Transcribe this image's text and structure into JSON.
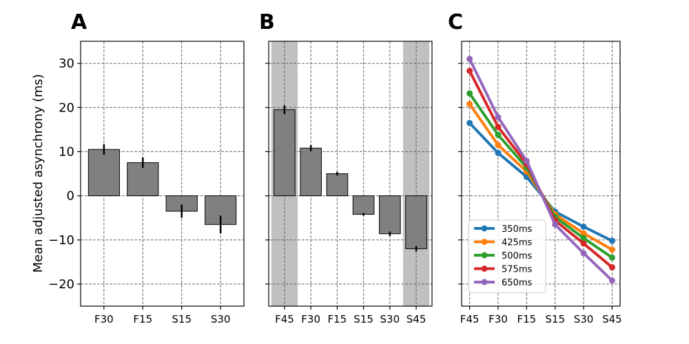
{
  "chart_data": [
    {
      "panel": "A",
      "type": "bar",
      "categories": [
        "F30",
        "F15",
        "S15",
        "S30"
      ],
      "values": [
        10.5,
        7.5,
        -3.5,
        -6.5
      ],
      "errors": [
        1.2,
        1.2,
        1.5,
        2.0
      ],
      "ylabel": "Mean adjusted asynchrony (ms)",
      "ylim": [
        -25,
        35
      ],
      "yticks": [
        -20,
        -10,
        0,
        10,
        20,
        30
      ],
      "grid": true,
      "bar_color": "#808080"
    },
    {
      "panel": "B",
      "type": "bar",
      "categories": [
        "F45",
        "F30",
        "F15",
        "S15",
        "S30",
        "S45"
      ],
      "values": [
        19.5,
        10.8,
        5.0,
        -4.2,
        -8.6,
        -12.0
      ],
      "errors": [
        1.0,
        0.7,
        0.4,
        0.3,
        0.5,
        0.6
      ],
      "shaded_categories": [
        "F45",
        "S45"
      ],
      "ylim": [
        -25,
        35
      ],
      "grid": true,
      "bar_color": "#808080",
      "shade_color": "#c0c0c0"
    },
    {
      "panel": "C",
      "type": "line",
      "categories": [
        "F45",
        "F30",
        "F15",
        "S15",
        "S30",
        "S45"
      ],
      "ylim": [
        -25,
        35
      ],
      "grid": true,
      "legend_position": "bottom-left",
      "series": [
        {
          "name": "350ms",
          "color": "#1f77b4",
          "values": [
            16.5,
            9.7,
            4.3,
            -3.6,
            -7.0,
            -10.2
          ]
        },
        {
          "name": "425ms",
          "color": "#ff7f0e",
          "values": [
            20.8,
            11.5,
            5.5,
            -4.2,
            -8.5,
            -12.2
          ]
        },
        {
          "name": "500ms",
          "color": "#2ca02c",
          "values": [
            23.2,
            13.8,
            6.4,
            -4.8,
            -9.6,
            -14.0
          ]
        },
        {
          "name": "575ms",
          "color": "#d62728",
          "values": [
            28.3,
            15.6,
            7.2,
            -5.6,
            -10.8,
            -16.2
          ]
        },
        {
          "name": "650ms",
          "color": "#9467bd",
          "values": [
            31.0,
            17.8,
            7.9,
            -6.5,
            -13.0,
            -19.2
          ]
        }
      ]
    }
  ]
}
